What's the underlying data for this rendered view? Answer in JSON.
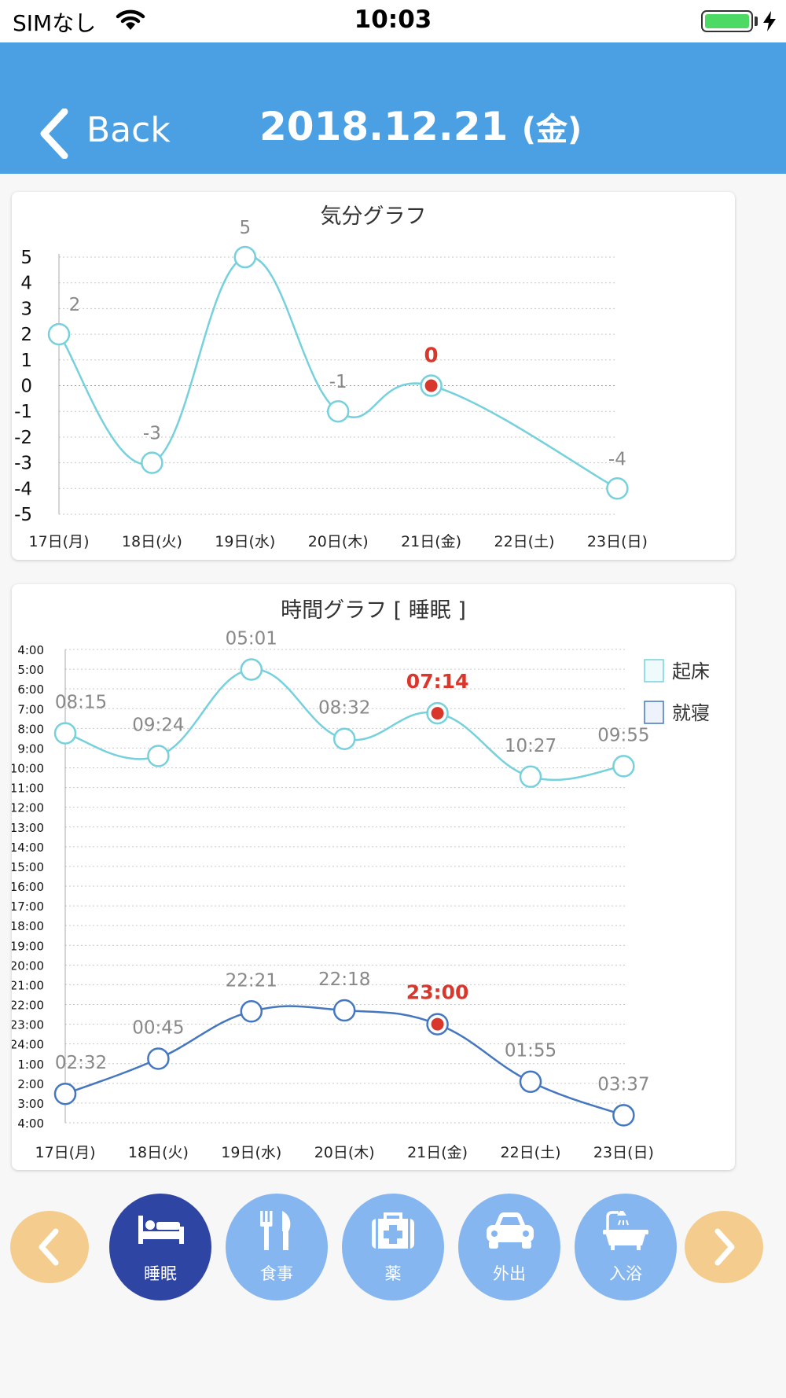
{
  "status_bar": {
    "carrier": "SIMなし",
    "time": "10:03",
    "battery_level": 1.0
  },
  "nav": {
    "back_label": "Back",
    "title_date": "2018.12.21",
    "title_dow": "(金)"
  },
  "colors": {
    "nav_bg": "#4ba0e3",
    "mood_line": "#76d1dc",
    "wake_line": "#76d1dc",
    "bed_line": "#4577c0",
    "highlight": "#d9362c",
    "active_category": "#2f45a3",
    "inactive_category": "#86b6f0",
    "arrow_button": "#f4cd8e"
  },
  "chart_data": [
    {
      "type": "line",
      "title": "気分グラフ",
      "categories": [
        "17日(月)",
        "18日(火)",
        "19日(水)",
        "20日(木)",
        "21日(金)",
        "22日(土)",
        "23日(日)"
      ],
      "y_ticks": [
        "5",
        "4",
        "3",
        "2",
        "1",
        "0",
        "-1",
        "-2",
        "-3",
        "-4",
        "-5"
      ],
      "ylim": [
        -5,
        5
      ],
      "grid": true,
      "highlight_index": 4,
      "series": [
        {
          "x": [
            "17日(月)",
            "18日(火)",
            "19日(水)",
            "20日(木)",
            "21日(金)",
            "23日(日)"
          ],
          "values": [
            2,
            -3,
            5,
            -1,
            0,
            -4
          ],
          "labels": [
            "2",
            "-3",
            "5",
            "-1",
            "0",
            "-4"
          ]
        }
      ]
    },
    {
      "type": "line",
      "title": "時間グラフ [ 睡眠 ]",
      "categories": [
        "17日(月)",
        "18日(火)",
        "19日(水)",
        "20日(木)",
        "21日(金)",
        "22日(土)",
        "23日(日)"
      ],
      "y_ticks": [
        "4:00",
        "5:00",
        "6:00",
        "7:00",
        "8:00",
        "9:00",
        "10:00",
        "11:00",
        "12:00",
        "13:00",
        "14:00",
        "15:00",
        "16:00",
        "17:00",
        "18:00",
        "19:00",
        "20:00",
        "21:00",
        "22:00",
        "23:00",
        "24:00",
        "1:00",
        "2:00",
        "3:00",
        "4:00"
      ],
      "grid": true,
      "highlight_index": 4,
      "legend": {
        "position": "right",
        "entries": [
          "起床",
          "就寝"
        ]
      },
      "series": [
        {
          "name": "起床",
          "values": [
            "08:15",
            "09:24",
            "05:01",
            "08:32",
            "07:14",
            "10:27",
            "09:55"
          ]
        },
        {
          "name": "就寝",
          "values": [
            "02:32",
            "00:45",
            "22:21",
            "22:18",
            "23:00",
            "01:55",
            "03:37"
          ]
        }
      ]
    }
  ],
  "categories_nav": {
    "prev_icon": "chevron-left-icon",
    "next_icon": "chevron-right-icon",
    "active": "睡眠",
    "items": [
      {
        "label": "睡眠",
        "icon": "bed-icon"
      },
      {
        "label": "食事",
        "icon": "fork-knife-icon"
      },
      {
        "label": "薬",
        "icon": "medicine-box-icon"
      },
      {
        "label": "外出",
        "icon": "car-icon"
      },
      {
        "label": "入浴",
        "icon": "bathtub-icon"
      }
    ]
  }
}
